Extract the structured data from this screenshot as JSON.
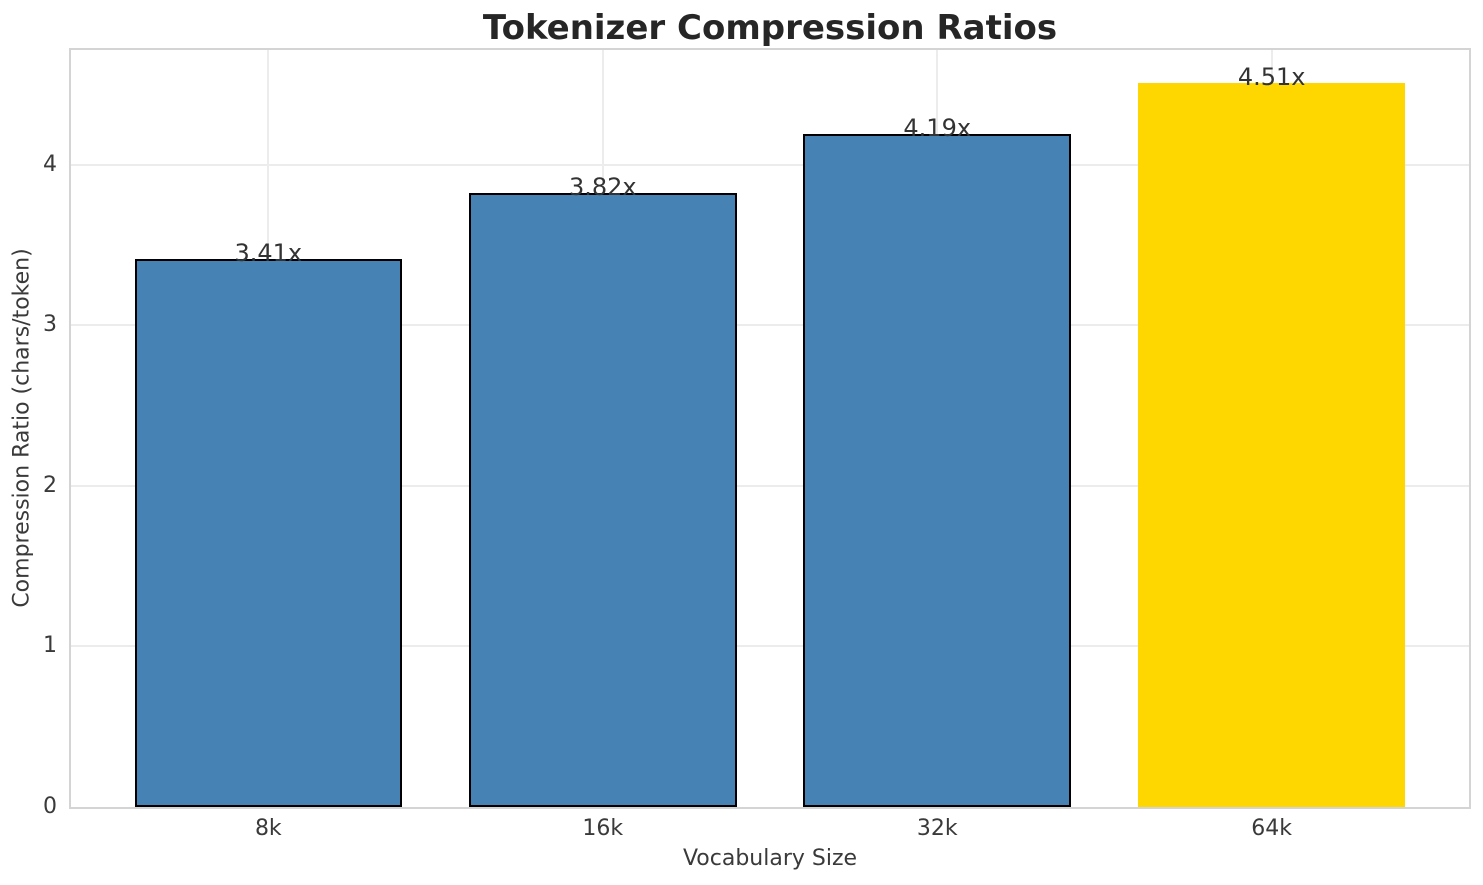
{
  "chart_data": {
    "type": "bar",
    "title": "Tokenizer Compression Ratios",
    "xlabel": "Vocabulary Size",
    "ylabel": "Compression Ratio (chars/token)",
    "categories": [
      "8k",
      "16k",
      "32k",
      "64k"
    ],
    "values": [
      3.41,
      3.82,
      4.19,
      4.51
    ],
    "bar_labels": [
      "3.41x",
      "3.82x",
      "4.19x",
      "4.51x"
    ],
    "yticks": [
      0,
      1,
      2,
      3,
      4
    ],
    "ylim": [
      0,
      4.713
    ],
    "grid": true,
    "legend": "none",
    "bar_colors": [
      "#4682B4",
      "#4682B4",
      "#4682B4",
      "#FFD700"
    ],
    "bar_edge_colors": [
      "#000000",
      "#000000",
      "#000000",
      "none"
    ],
    "highlight_index": 3,
    "colors": {
      "bar_blue": "#4682B4",
      "bar_gold": "#FFD700",
      "bar_edge": "#000000",
      "grid": "#ececec",
      "spine": "#d4d4d4",
      "title_text": "#262626",
      "tick_text": "#3a3a3a",
      "value_text": "#333333",
      "background": "#ffffff"
    }
  }
}
